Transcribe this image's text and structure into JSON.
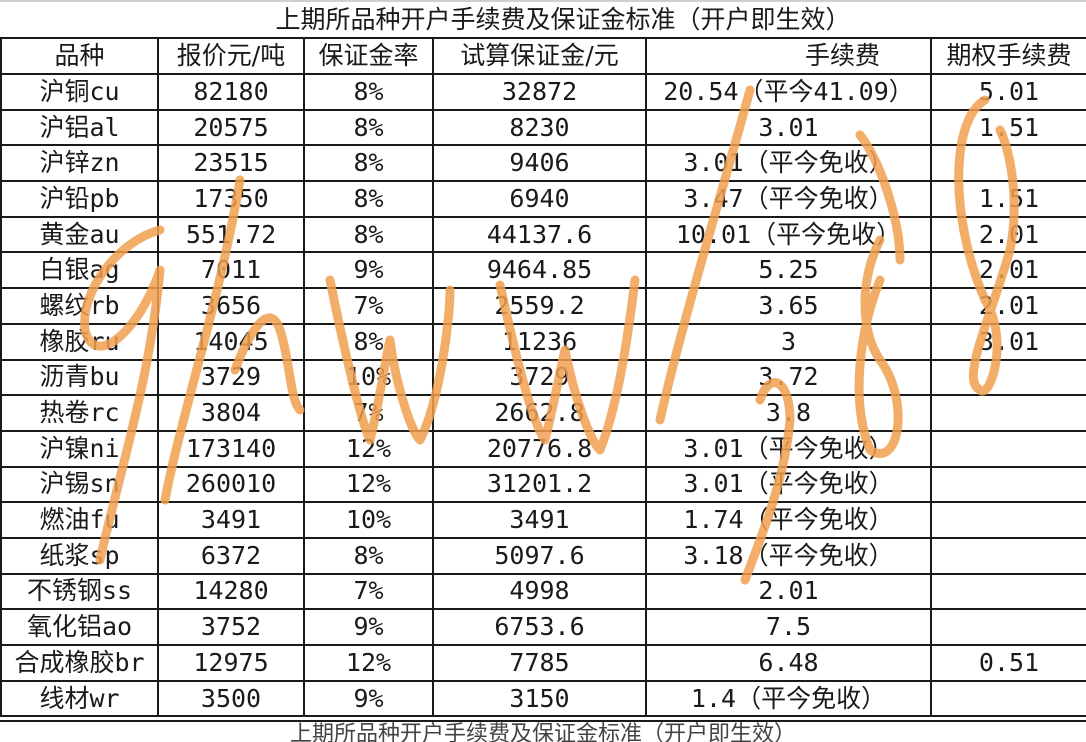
{
  "title": "上期所品种开户手续费及保证金标准（开户即生效）",
  "columns": [
    "品种",
    "报价元/吨",
    "保证金率",
    "试算保证金/元",
    "手续费",
    "期权手续费"
  ],
  "rows": [
    [
      "沪铜cu",
      "82180",
      "8%",
      "32872",
      "20.54（平今41.09）",
      "5.01"
    ],
    [
      "沪铝al",
      "20575",
      "8%",
      "8230",
      "3.01",
      "1.51"
    ],
    [
      "沪锌zn",
      "23515",
      "8%",
      "9406",
      "3.01（平今免收）",
      ""
    ],
    [
      "沪铅pb",
      "17350",
      "8%",
      "6940",
      "3.47（平今免收）",
      "1.51"
    ],
    [
      "黄金au",
      "551.72",
      "8%",
      "44137.6",
      "10.01（平今免收）",
      "2.01"
    ],
    [
      "白银ag",
      "7011",
      "9%",
      "9464.85",
      "5.25",
      "2.01"
    ],
    [
      "螺纹rb",
      "3656",
      "7%",
      "2559.2",
      "3.65",
      "2.01"
    ],
    [
      "橡胶ru",
      "14045",
      "8%",
      "11236",
      "3",
      "3.01"
    ],
    [
      "沥青bu",
      "3729",
      "10%",
      "3729",
      "3.72",
      ""
    ],
    [
      "热卷rc",
      "3804",
      "7%",
      "2662.8",
      "3.8",
      ""
    ],
    [
      "沪镍ni",
      "173140",
      "12%",
      "20776.8",
      "3.01（平今免收）",
      ""
    ],
    [
      "沪锡sn",
      "260010",
      "12%",
      "31201.2",
      "3.01（平今免收）",
      ""
    ],
    [
      "燃油fu",
      "3491",
      "10%",
      "3491",
      "1.74（平今免收）",
      ""
    ],
    [
      "纸浆sp",
      "6372",
      "8%",
      "5097.6",
      "3.18（平今免收）",
      ""
    ],
    [
      "不锈钢ss",
      "14280",
      "7%",
      "4998",
      "2.01",
      ""
    ],
    [
      "氧化铝ao",
      "3752",
      "9%",
      "6753.6",
      "7.5",
      ""
    ],
    [
      "合成橡胶br",
      "12975",
      "12%",
      "7785",
      "6.48",
      "0.51"
    ],
    [
      "线材wr",
      "3500",
      "9%",
      "3150",
      "1.4（平今免收）",
      ""
    ]
  ],
  "footer_partial": "上期所品种开户手续费及保证金标准（开户即生效）",
  "watermark": {
    "color": "#f0a050"
  }
}
